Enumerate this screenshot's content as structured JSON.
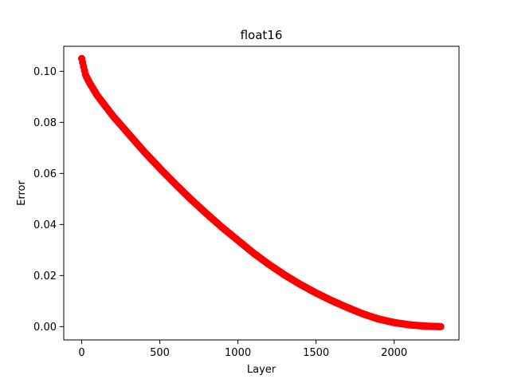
{
  "chart_data": {
    "type": "scatter",
    "title": "float16",
    "xlabel": "Layer",
    "ylabel": "Error",
    "xlim": [
      -115,
      2415
    ],
    "ylim": [
      -0.0052,
      0.1098
    ],
    "xticks": [
      0,
      500,
      1000,
      1500,
      2000
    ],
    "xtick_labels": [
      "0",
      "500",
      "1000",
      "1500",
      "2000"
    ],
    "yticks": [
      0.0,
      0.02,
      0.04,
      0.06,
      0.08,
      0.1
    ],
    "ytick_labels": [
      "0.00",
      "0.02",
      "0.04",
      "0.06",
      "0.08",
      "0.10"
    ],
    "grid": false,
    "marker_color": "#ff0000",
    "series": [
      {
        "x": [
          0,
          25,
          50,
          100,
          150,
          200,
          300,
          400,
          500,
          600,
          700,
          800,
          900,
          1000,
          1100,
          1200,
          1300,
          1400,
          1500,
          1600,
          1700,
          1800,
          1900,
          2000,
          2100,
          2200,
          2250,
          2300
        ],
        "y": [
          0.105,
          0.0985,
          0.0955,
          0.0905,
          0.0865,
          0.0825,
          0.0755,
          0.0685,
          0.062,
          0.0558,
          0.0498,
          0.0442,
          0.0388,
          0.0338,
          0.0288,
          0.0243,
          0.0202,
          0.0165,
          0.0132,
          0.0102,
          0.0075,
          0.005,
          0.003,
          0.0016,
          0.0007,
          0.0002,
          0.0001,
          0.0
        ]
      }
    ]
  }
}
